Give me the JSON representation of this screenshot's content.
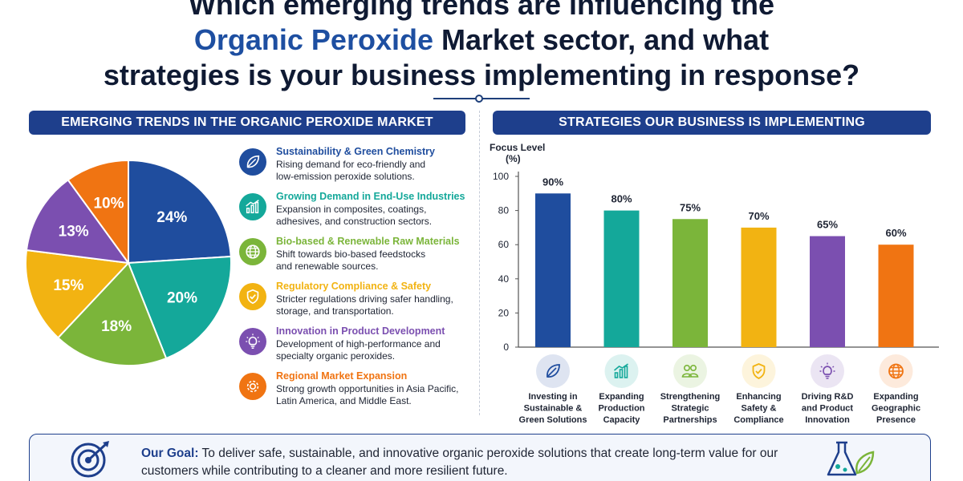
{
  "title": {
    "line1": "Which emerging trends are influencing the",
    "line2_highlight": "Organic Peroxide",
    "line2_rest": " Market sector, and what",
    "line3": "strategies is your business implementing in response?"
  },
  "left_banner": "EMERGING TRENDS IN THE ORGANIC PEROXIDE MARKET",
  "right_banner": "STRATEGIES OUR BUSINESS IS IMPLEMENTING",
  "colors": {
    "blue": "#1f4d9e",
    "teal": "#14a89a",
    "green": "#7bb53a",
    "yellow": "#f2b312",
    "purple": "#7b4fb0",
    "orange": "#f07412"
  },
  "trends": [
    {
      "heading": "Sustainability & Green Chemistry",
      "line1": "Rising demand for eco-friendly and",
      "line2": "low-emission peroxide solutions.",
      "icon": "leaf-icon",
      "color": "#1f4d9e"
    },
    {
      "heading": "Growing Demand in End-Use Industries",
      "line1": "Expansion in composites, coatings,",
      "line2": "adhesives, and construction sectors.",
      "icon": "growth-chart-icon",
      "color": "#14a89a"
    },
    {
      "heading": "Bio-based & Renewable Raw Materials",
      "line1": "Shift towards bio-based feedstocks",
      "line2": "and renewable sources.",
      "icon": "globe-icon",
      "color": "#7bb53a"
    },
    {
      "heading": "Regulatory Compliance & Safety",
      "line1": "Stricter regulations driving safer handling,",
      "line2": "storage, and transportation.",
      "icon": "shield-check-icon",
      "color": "#f2b312"
    },
    {
      "heading": "Innovation in Product Development",
      "line1": "Development of high-performance and",
      "line2": "specialty organic peroxides.",
      "icon": "lightbulb-icon",
      "color": "#7b4fb0"
    },
    {
      "heading": "Regional Market Expansion",
      "line1": "Strong growth opportunities in Asia Pacific,",
      "line2": "Latin America, and Middle East.",
      "icon": "gear-icon",
      "color": "#f07412"
    }
  ],
  "chart_data": [
    {
      "type": "pie",
      "categories": [
        "Sustainability & Green Chemistry",
        "Growing Demand in End-Use Industries",
        "Bio-based & Renewable Raw Materials",
        "Regulatory Compliance & Safety",
        "Innovation in Product Development",
        "Regional Market Expansion"
      ],
      "values": [
        24,
        20,
        18,
        15,
        13,
        10
      ],
      "labels": [
        "24%",
        "20%",
        "18%",
        "15%",
        "13%",
        "10%"
      ],
      "colors": [
        "#1f4d9e",
        "#14a89a",
        "#7bb53a",
        "#f2b312",
        "#7b4fb0",
        "#f07412"
      ]
    },
    {
      "type": "bar",
      "ylabel_line1": "Focus Level",
      "ylabel_line2": "(%)",
      "ylim": [
        0,
        100
      ],
      "yticks": [
        0,
        20,
        40,
        60,
        80,
        100
      ],
      "grid": false,
      "categories": [
        [
          "Investing in",
          "Sustainable &",
          "Green Solutions"
        ],
        [
          "Expanding",
          "Production",
          "Capacity"
        ],
        [
          "Strengthening",
          "Strategic",
          "Partnerships"
        ],
        [
          "Enhancing",
          "Safety &",
          "Compliance"
        ],
        [
          "Driving R&D",
          "and Product",
          "Innovation"
        ],
        [
          "Expanding",
          "Geographic",
          "Presence"
        ]
      ],
      "values": [
        90,
        80,
        75,
        70,
        65,
        60
      ],
      "labels": [
        "90%",
        "80%",
        "75%",
        "70%",
        "65%",
        "60%"
      ],
      "colors": [
        "#1f4d9e",
        "#14a89a",
        "#7bb53a",
        "#f2b312",
        "#7b4fb0",
        "#f07412"
      ],
      "icons": [
        "leaf-icon",
        "growth-chart-icon",
        "people-icon",
        "shield-check-icon",
        "lightbulb-icon",
        "globe-icon"
      ]
    }
  ],
  "goal": {
    "label": "Our Goal:",
    "text": "To deliver safe, sustainable, and innovative organic peroxide solutions that create long-term value for our customers while contributing to a cleaner and more resilient future.",
    "icon": "target-icon",
    "right_icon": "flask-leaf-icon"
  }
}
